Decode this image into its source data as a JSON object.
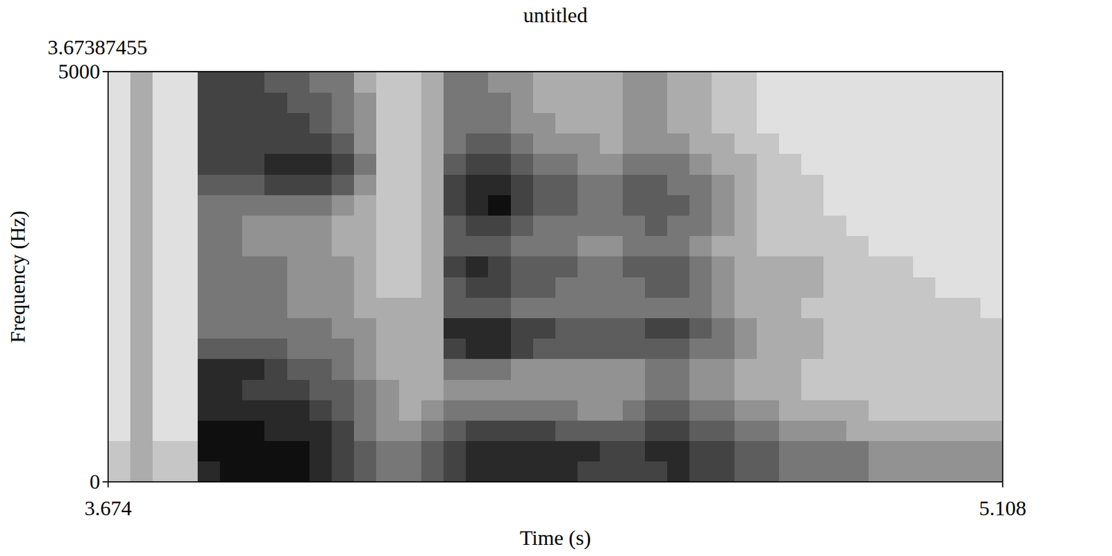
{
  "chart_data": {
    "type": "heatmap",
    "title": "untitled",
    "annotations": [
      "3.67387455"
    ],
    "x_label": "Time (s)",
    "y_label": "Frequency (Hz)",
    "xlim": [
      3.674,
      5.108
    ],
    "ylim": [
      0,
      5000
    ],
    "xticks": [
      3.674,
      5.108
    ],
    "yticks": [
      0,
      5000
    ],
    "zlim": [
      0,
      9
    ],
    "cells": [
      [
        2,
        3,
        2,
        2,
        8,
        9,
        9,
        9,
        9,
        8,
        7,
        6,
        5,
        5,
        6,
        7,
        8,
        8,
        8,
        8,
        8,
        7,
        7,
        7,
        7,
        8,
        7,
        7,
        6,
        6,
        5,
        5,
        5,
        5,
        4,
        4,
        4,
        4,
        4,
        4
      ],
      [
        2,
        3,
        2,
        2,
        9,
        9,
        9,
        9,
        9,
        8,
        7,
        6,
        5,
        5,
        6,
        7,
        8,
        8,
        8,
        8,
        8,
        8,
        7,
        7,
        8,
        8,
        7,
        7,
        6,
        6,
        5,
        5,
        5,
        5,
        4,
        4,
        4,
        4,
        4,
        4
      ],
      [
        1,
        3,
        1,
        1,
        9,
        9,
        9,
        8,
        8,
        8,
        7,
        5,
        4,
        4,
        5,
        6,
        7,
        7,
        7,
        7,
        6,
        6,
        6,
        6,
        7,
        7,
        6,
        6,
        5,
        5,
        4,
        4,
        4,
        3,
        3,
        3,
        3,
        3,
        3,
        3
      ],
      [
        1,
        3,
        1,
        1,
        8,
        8,
        8,
        8,
        8,
        7,
        6,
        5,
        4,
        3,
        4,
        5,
        5,
        5,
        5,
        5,
        5,
        4,
        4,
        5,
        6,
        6,
        5,
        5,
        4,
        4,
        3,
        3,
        3,
        3,
        2,
        2,
        2,
        2,
        2,
        2
      ],
      [
        1,
        3,
        1,
        1,
        8,
        8,
        7,
        7,
        7,
        6,
        6,
        5,
        4,
        3,
        3,
        4,
        4,
        4,
        4,
        4,
        4,
        4,
        4,
        4,
        5,
        5,
        4,
        4,
        3,
        3,
        3,
        2,
        2,
        2,
        2,
        2,
        2,
        2,
        2,
        2
      ],
      [
        1,
        3,
        1,
        1,
        8,
        8,
        8,
        7,
        6,
        6,
        5,
        4,
        3,
        3,
        3,
        5,
        5,
        5,
        4,
        4,
        4,
        4,
        4,
        4,
        5,
        5,
        4,
        4,
        3,
        3,
        3,
        2,
        2,
        2,
        2,
        2,
        2,
        2,
        2,
        2
      ],
      [
        1,
        3,
        1,
        1,
        6,
        6,
        6,
        6,
        5,
        5,
        5,
        4,
        3,
        3,
        3,
        7,
        8,
        8,
        7,
        6,
        6,
        6,
        6,
        6,
        6,
        6,
        5,
        5,
        4,
        3,
        3,
        3,
        2,
        2,
        2,
        2,
        2,
        2,
        2,
        2
      ],
      [
        1,
        3,
        1,
        1,
        5,
        5,
        5,
        5,
        5,
        5,
        4,
        4,
        3,
        3,
        3,
        8,
        8,
        8,
        7,
        7,
        6,
        6,
        6,
        6,
        7,
        7,
        6,
        5,
        4,
        3,
        3,
        3,
        2,
        2,
        2,
        2,
        2,
        2,
        2,
        2
      ],
      [
        1,
        3,
        1,
        1,
        5,
        5,
        5,
        5,
        4,
        4,
        4,
        3,
        3,
        3,
        3,
        6,
        6,
        6,
        5,
        5,
        5,
        5,
        5,
        5,
        5,
        5,
        5,
        4,
        3,
        3,
        3,
        2,
        2,
        2,
        2,
        2,
        2,
        2,
        2,
        1
      ],
      [
        1,
        3,
        1,
        1,
        5,
        5,
        5,
        5,
        4,
        4,
        4,
        3,
        2,
        2,
        3,
        6,
        7,
        7,
        6,
        6,
        5,
        5,
        5,
        5,
        6,
        6,
        5,
        4,
        3,
        3,
        3,
        3,
        2,
        2,
        2,
        2,
        2,
        1,
        1,
        1
      ],
      [
        1,
        3,
        1,
        1,
        5,
        5,
        5,
        5,
        4,
        4,
        4,
        3,
        2,
        2,
        3,
        7,
        8,
        7,
        6,
        6,
        6,
        5,
        5,
        6,
        6,
        6,
        5,
        4,
        3,
        3,
        3,
        3,
        2,
        2,
        2,
        2,
        1,
        1,
        1,
        1
      ],
      [
        1,
        3,
        1,
        1,
        5,
        5,
        4,
        4,
        4,
        4,
        3,
        3,
        2,
        2,
        3,
        6,
        6,
        6,
        5,
        5,
        5,
        4,
        4,
        5,
        5,
        5,
        4,
        3,
        3,
        2,
        2,
        2,
        2,
        2,
        1,
        1,
        1,
        1,
        1,
        1
      ],
      [
        1,
        3,
        1,
        1,
        5,
        5,
        4,
        4,
        4,
        4,
        3,
        3,
        2,
        2,
        3,
        6,
        7,
        7,
        6,
        5,
        5,
        5,
        5,
        5,
        6,
        5,
        5,
        4,
        3,
        2,
        2,
        2,
        2,
        1,
        1,
        1,
        1,
        1,
        1,
        1
      ],
      [
        1,
        3,
        1,
        1,
        5,
        5,
        5,
        5,
        5,
        5,
        4,
        3,
        2,
        2,
        3,
        7,
        8,
        9,
        7,
        6,
        6,
        5,
        5,
        6,
        6,
        6,
        5,
        4,
        3,
        2,
        2,
        2,
        1,
        1,
        1,
        1,
        1,
        1,
        1,
        1
      ],
      [
        1,
        3,
        1,
        1,
        6,
        6,
        6,
        7,
        7,
        7,
        6,
        4,
        2,
        2,
        3,
        7,
        8,
        8,
        7,
        6,
        6,
        5,
        5,
        6,
        6,
        5,
        5,
        4,
        3,
        2,
        2,
        2,
        1,
        1,
        1,
        1,
        1,
        1,
        1,
        1
      ],
      [
        1,
        3,
        1,
        1,
        7,
        7,
        7,
        8,
        8,
        8,
        7,
        5,
        2,
        2,
        3,
        6,
        7,
        7,
        6,
        5,
        5,
        4,
        4,
        5,
        5,
        5,
        4,
        3,
        3,
        2,
        2,
        1,
        1,
        1,
        1,
        1,
        1,
        1,
        1,
        1
      ],
      [
        1,
        3,
        1,
        1,
        7,
        7,
        7,
        7,
        7,
        7,
        6,
        4,
        2,
        2,
        3,
        5,
        6,
        6,
        5,
        4,
        4,
        4,
        3,
        4,
        4,
        4,
        3,
        3,
        2,
        2,
        1,
        1,
        1,
        1,
        1,
        1,
        1,
        1,
        1,
        1
      ],
      [
        1,
        3,
        1,
        1,
        7,
        7,
        7,
        7,
        7,
        6,
        5,
        4,
        2,
        2,
        3,
        5,
        5,
        5,
        4,
        4,
        3,
        3,
        3,
        4,
        4,
        3,
        3,
        2,
        2,
        1,
        1,
        1,
        1,
        1,
        1,
        1,
        1,
        1,
        1,
        1
      ],
      [
        1,
        3,
        1,
        1,
        7,
        7,
        7,
        7,
        6,
        6,
        5,
        4,
        2,
        2,
        3,
        5,
        5,
        5,
        4,
        3,
        3,
        3,
        3,
        4,
        4,
        3,
        3,
        2,
        2,
        1,
        1,
        1,
        1,
        1,
        1,
        1,
        1,
        1,
        1,
        1
      ],
      [
        1,
        3,
        1,
        1,
        7,
        7,
        7,
        6,
        6,
        5,
        5,
        3,
        2,
        2,
        3,
        5,
        5,
        4,
        4,
        3,
        3,
        3,
        3,
        4,
        4,
        3,
        3,
        2,
        2,
        1,
        1,
        1,
        1,
        1,
        1,
        1,
        1,
        1,
        1,
        1
      ]
    ]
  }
}
